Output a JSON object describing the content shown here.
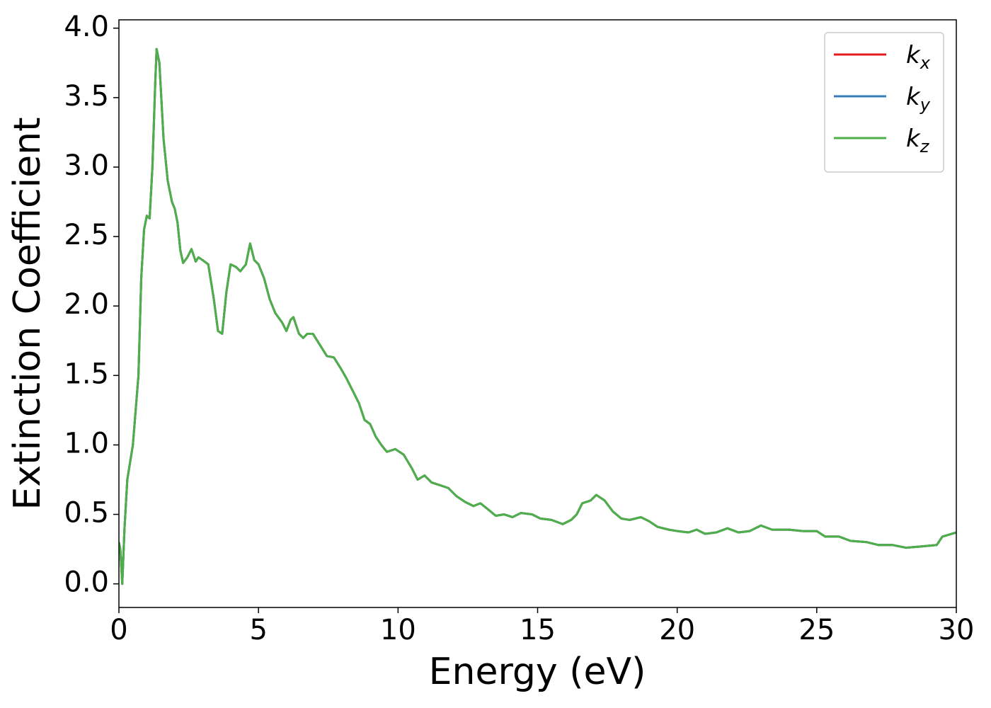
{
  "chart_data": {
    "type": "line",
    "xlabel": "Energy (eV)",
    "ylabel": "Extinction Coefficient",
    "xlim": [
      0,
      30
    ],
    "ylim": [
      -0.17,
      4.06
    ],
    "xticks": [
      0,
      5,
      10,
      15,
      20,
      25,
      30
    ],
    "yticks": [
      {
        "value": 0,
        "label": "0.0"
      },
      0.5,
      {
        "value": 1,
        "label": "1.0"
      },
      1.5,
      {
        "value": 2,
        "label": "2.0"
      },
      2.5,
      {
        "value": 3,
        "label": "3.0"
      },
      3.5,
      {
        "value": 4,
        "label": "4.0"
      }
    ],
    "grid": false,
    "legend": "upper right",
    "x": [
      0,
      0.05,
      0.12,
      0.2,
      0.3,
      0.5,
      0.7,
      0.8,
      0.9,
      1.0,
      1.1,
      1.2,
      1.3,
      1.35,
      1.45,
      1.6,
      1.75,
      1.9,
      2.0,
      2.1,
      2.2,
      2.3,
      2.45,
      2.6,
      2.75,
      2.85,
      3.0,
      3.2,
      3.4,
      3.55,
      3.7,
      3.85,
      4.0,
      4.2,
      4.35,
      4.55,
      4.7,
      4.85,
      5.0,
      5.2,
      5.4,
      5.6,
      5.85,
      6.0,
      6.15,
      6.25,
      6.45,
      6.6,
      6.75,
      6.95,
      7.2,
      7.45,
      7.7,
      7.95,
      8.15,
      8.4,
      8.6,
      8.8,
      9.0,
      9.2,
      9.4,
      9.6,
      9.9,
      10.2,
      10.5,
      10.7,
      10.95,
      11.2,
      11.5,
      11.8,
      12.1,
      12.4,
      12.7,
      12.95,
      13.2,
      13.5,
      13.8,
      14.1,
      14.4,
      14.8,
      15.1,
      15.5,
      15.9,
      16.2,
      16.4,
      16.6,
      16.9,
      17.1,
      17.4,
      17.7,
      18.0,
      18.3,
      18.7,
      19.0,
      19.3,
      19.7,
      20.0,
      20.4,
      20.7,
      21.0,
      21.4,
      21.8,
      22.2,
      22.6,
      23.0,
      23.4,
      24.0,
      24.5,
      25.0,
      25.3,
      25.8,
      26.2,
      26.8,
      27.2,
      27.7,
      28.2,
      28.8,
      29.3,
      29.5,
      30.0
    ],
    "series": [
      {
        "name": "kx",
        "color": "#e41a1c",
        "values": [
          0.3,
          0.25,
          0.0,
          0.4,
          0.75,
          1.0,
          1.5,
          2.2,
          2.55,
          2.65,
          2.63,
          3.0,
          3.6,
          3.85,
          3.75,
          3.2,
          2.9,
          2.75,
          2.7,
          2.6,
          2.4,
          2.31,
          2.35,
          2.41,
          2.32,
          2.35,
          2.33,
          2.3,
          2.05,
          1.82,
          1.8,
          2.1,
          2.3,
          2.28,
          2.25,
          2.3,
          2.45,
          2.33,
          2.3,
          2.2,
          2.05,
          1.95,
          1.88,
          1.82,
          1.9,
          1.92,
          1.8,
          1.77,
          1.8,
          1.8,
          1.72,
          1.64,
          1.63,
          1.55,
          1.48,
          1.38,
          1.3,
          1.18,
          1.15,
          1.06,
          1.0,
          0.95,
          0.97,
          0.93,
          0.83,
          0.75,
          0.78,
          0.73,
          0.71,
          0.69,
          0.63,
          0.59,
          0.56,
          0.58,
          0.54,
          0.49,
          0.5,
          0.48,
          0.51,
          0.5,
          0.47,
          0.46,
          0.43,
          0.46,
          0.5,
          0.58,
          0.6,
          0.64,
          0.6,
          0.52,
          0.47,
          0.46,
          0.48,
          0.45,
          0.41,
          0.39,
          0.38,
          0.37,
          0.39,
          0.36,
          0.37,
          0.4,
          0.37,
          0.38,
          0.42,
          0.39,
          0.39,
          0.38,
          0.38,
          0.34,
          0.34,
          0.31,
          0.3,
          0.28,
          0.28,
          0.26,
          0.27,
          0.28,
          0.34,
          0.37
        ]
      },
      {
        "name": "ky",
        "color": "#377eb8",
        "values": [
          0.3,
          0.25,
          0.0,
          0.4,
          0.75,
          1.0,
          1.5,
          2.2,
          2.55,
          2.65,
          2.63,
          3.0,
          3.6,
          3.85,
          3.75,
          3.2,
          2.9,
          2.75,
          2.7,
          2.6,
          2.4,
          2.31,
          2.35,
          2.41,
          2.32,
          2.35,
          2.33,
          2.3,
          2.05,
          1.82,
          1.8,
          2.1,
          2.3,
          2.28,
          2.25,
          2.3,
          2.45,
          2.33,
          2.3,
          2.2,
          2.05,
          1.95,
          1.88,
          1.82,
          1.9,
          1.92,
          1.8,
          1.77,
          1.8,
          1.8,
          1.72,
          1.64,
          1.63,
          1.55,
          1.48,
          1.38,
          1.3,
          1.18,
          1.15,
          1.06,
          1.0,
          0.95,
          0.97,
          0.93,
          0.83,
          0.75,
          0.78,
          0.73,
          0.71,
          0.69,
          0.63,
          0.59,
          0.56,
          0.58,
          0.54,
          0.49,
          0.5,
          0.48,
          0.51,
          0.5,
          0.47,
          0.46,
          0.43,
          0.46,
          0.5,
          0.58,
          0.6,
          0.64,
          0.6,
          0.52,
          0.47,
          0.46,
          0.48,
          0.45,
          0.41,
          0.39,
          0.38,
          0.37,
          0.39,
          0.36,
          0.37,
          0.4,
          0.37,
          0.38,
          0.42,
          0.39,
          0.39,
          0.38,
          0.38,
          0.34,
          0.34,
          0.31,
          0.3,
          0.28,
          0.28,
          0.26,
          0.27,
          0.28,
          0.34,
          0.37
        ]
      },
      {
        "name": "kz",
        "color": "#4daf4a",
        "values": [
          0.3,
          0.25,
          0.0,
          0.4,
          0.75,
          1.0,
          1.5,
          2.2,
          2.55,
          2.65,
          2.63,
          3.0,
          3.6,
          3.85,
          3.75,
          3.2,
          2.9,
          2.75,
          2.7,
          2.6,
          2.4,
          2.31,
          2.35,
          2.41,
          2.32,
          2.35,
          2.33,
          2.3,
          2.05,
          1.82,
          1.8,
          2.1,
          2.3,
          2.28,
          2.25,
          2.3,
          2.45,
          2.33,
          2.3,
          2.2,
          2.05,
          1.95,
          1.88,
          1.82,
          1.9,
          1.92,
          1.8,
          1.77,
          1.8,
          1.8,
          1.72,
          1.64,
          1.63,
          1.55,
          1.48,
          1.38,
          1.3,
          1.18,
          1.15,
          1.06,
          1.0,
          0.95,
          0.97,
          0.93,
          0.83,
          0.75,
          0.78,
          0.73,
          0.71,
          0.69,
          0.63,
          0.59,
          0.56,
          0.58,
          0.54,
          0.49,
          0.5,
          0.48,
          0.51,
          0.5,
          0.47,
          0.46,
          0.43,
          0.46,
          0.5,
          0.58,
          0.6,
          0.64,
          0.6,
          0.52,
          0.47,
          0.46,
          0.48,
          0.45,
          0.41,
          0.39,
          0.38,
          0.37,
          0.39,
          0.36,
          0.37,
          0.4,
          0.37,
          0.38,
          0.42,
          0.39,
          0.39,
          0.38,
          0.38,
          0.34,
          0.34,
          0.31,
          0.3,
          0.28,
          0.28,
          0.26,
          0.27,
          0.28,
          0.34,
          0.37
        ]
      }
    ]
  }
}
